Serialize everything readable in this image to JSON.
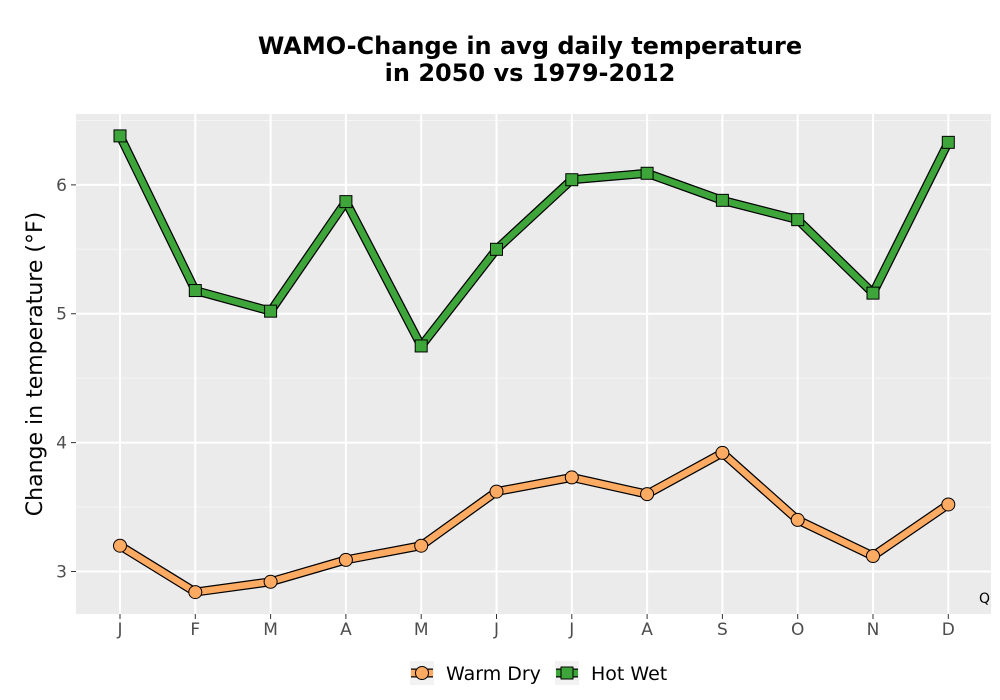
{
  "chart_data": {
    "type": "line",
    "title_line1": "WAMO-Change in avg daily temperature",
    "title_line2": "in 2050 vs 1979-2012",
    "xlabel": "",
    "ylabel": "Change in temperature (°F)",
    "categories": [
      "J",
      "F",
      "M",
      "A",
      "M",
      "J",
      "J",
      "A",
      "S",
      "O",
      "N",
      "D"
    ],
    "ylim": [
      2.67,
      6.55
    ],
    "yticks": [
      3,
      4,
      5,
      6
    ],
    "grid": true,
    "legend_position": "bottom",
    "annotation": "Q",
    "series": [
      {
        "name": "Warm Dry",
        "marker": "circle",
        "color": "#fdaa63",
        "values": [
          3.2,
          2.84,
          2.92,
          3.09,
          3.2,
          3.62,
          3.73,
          3.6,
          3.92,
          3.4,
          3.12,
          3.52
        ]
      },
      {
        "name": "Hot Wet",
        "marker": "square",
        "color": "#3da53a",
        "values": [
          6.38,
          5.18,
          5.02,
          5.87,
          4.75,
          5.5,
          6.04,
          6.09,
          5.88,
          5.73,
          5.16,
          6.33
        ]
      }
    ]
  }
}
